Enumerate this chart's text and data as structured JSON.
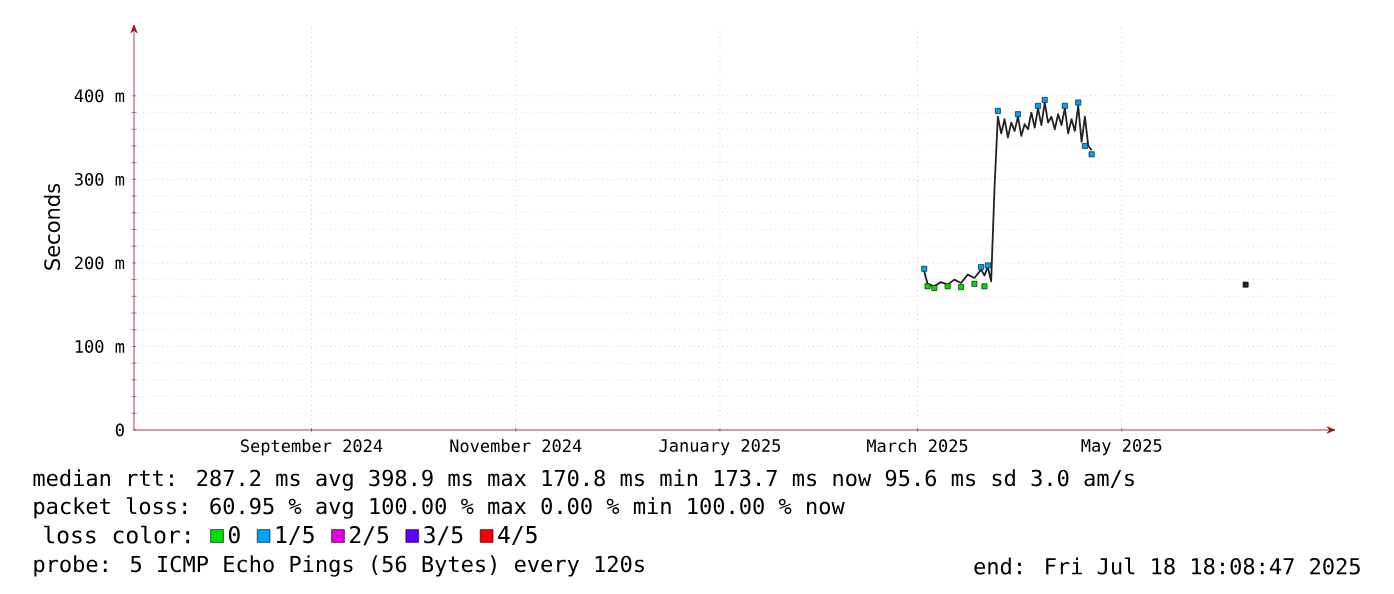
{
  "chart_data": {
    "type": "line",
    "ylabel": "Seconds",
    "legend_title": "loss color:",
    "legend": "bottom",
    "grid": true,
    "xlim": [
      "2024-07-24",
      "2025-07-18"
    ],
    "xticks": [
      {
        "value": "2024-09-15",
        "label": "September 2024"
      },
      {
        "value": "2024-11-15",
        "label": "November 2024"
      },
      {
        "value": "2025-01-15",
        "label": "January 2025"
      },
      {
        "value": "2025-03-15",
        "label": "March 2025"
      },
      {
        "value": "2025-05-15",
        "label": "May 2025"
      }
    ],
    "ylim": [
      0,
      486
    ],
    "yticks": [
      0,
      {
        "value": 100,
        "label": "100 m"
      },
      {
        "value": 200,
        "label": "200 m"
      },
      {
        "value": 300,
        "label": "300 m"
      },
      {
        "value": 400,
        "label": "400 m"
      }
    ],
    "series": [
      {
        "color": "#222222",
        "x": [
          "2025-03-17",
          "2025-03-18",
          "2025-03-20",
          "2025-03-22",
          "2025-03-24",
          "2025-03-26",
          "2025-03-28",
          "2025-03-30",
          "2025-04-01",
          "2025-04-03",
          "2025-04-04",
          "2025-04-05",
          "2025-04-06",
          "2025-04-07",
          "2025-04-08",
          "2025-04-09",
          "2025-04-10",
          "2025-04-11",
          "2025-04-12",
          "2025-04-13",
          "2025-04-14",
          "2025-04-15",
          "2025-04-16",
          "2025-04-17",
          "2025-04-18",
          "2025-04-19",
          "2025-04-20",
          "2025-04-21",
          "2025-04-22",
          "2025-04-23",
          "2025-04-24",
          "2025-04-25",
          "2025-04-26",
          "2025-04-27",
          "2025-04-28",
          "2025-04-29",
          "2025-04-30",
          "2025-05-01",
          "2025-05-02",
          "2025-05-03",
          "2025-05-04",
          "2025-05-05",
          "2025-05-06"
        ],
        "values": [
          190,
          175,
          172,
          177,
          174,
          180,
          176,
          186,
          182,
          192,
          185,
          195,
          178,
          290,
          375,
          355,
          372,
          350,
          368,
          358,
          375,
          352,
          366,
          360,
          380,
          362,
          385,
          365,
          392,
          368,
          375,
          360,
          378,
          365,
          385,
          355,
          372,
          358,
          388,
          345,
          375,
          340,
          335
        ]
      },
      {
        "type": "scatter",
        "color": "#222222",
        "marker": "square",
        "x": [
          "2025-06-21"
        ],
        "values": [
          174
        ]
      },
      {
        "type": "scatter",
        "name": "0",
        "color": "#00e000",
        "marker": "square",
        "x": [
          "2025-03-18",
          "2025-03-20",
          "2025-03-24",
          "2025-03-28",
          "2025-04-01",
          "2025-04-04"
        ],
        "values": [
          172,
          170,
          172,
          171,
          175,
          172
        ]
      },
      {
        "type": "scatter",
        "name": "1/5",
        "color": "#00a0ff",
        "marker": "square",
        "x": [
          "2025-03-17",
          "2025-04-03",
          "2025-04-05",
          "2025-04-08",
          "2025-04-14",
          "2025-04-20",
          "2025-04-22",
          "2025-04-28",
          "2025-05-02",
          "2025-05-04",
          "2025-05-06"
        ],
        "values": [
          193,
          195,
          197,
          382,
          378,
          388,
          395,
          388,
          392,
          340,
          330
        ]
      },
      {
        "type": "scatter",
        "name": "2/5",
        "color": "#e000e0",
        "marker": "square"
      },
      {
        "type": "scatter",
        "name": "3/5",
        "color": "#6000ff",
        "marker": "square"
      },
      {
        "type": "scatter",
        "name": "4/5",
        "color": "#ff0000",
        "marker": "square"
      }
    ],
    "annotations": [
      "median rtt:  287.2 ms avg  398.9 ms max  170.8 ms min  173.7 ms now  95.6 ms sd  3.0   am/s",
      "packet loss: 60.95 % avg  100.00 % max  0.00 % min  100.00 % now",
      "probe:       5 ICMP Echo Pings (56 Bytes) every 120s",
      "end: Fri Jul 18 18:08:47 2025"
    ]
  }
}
